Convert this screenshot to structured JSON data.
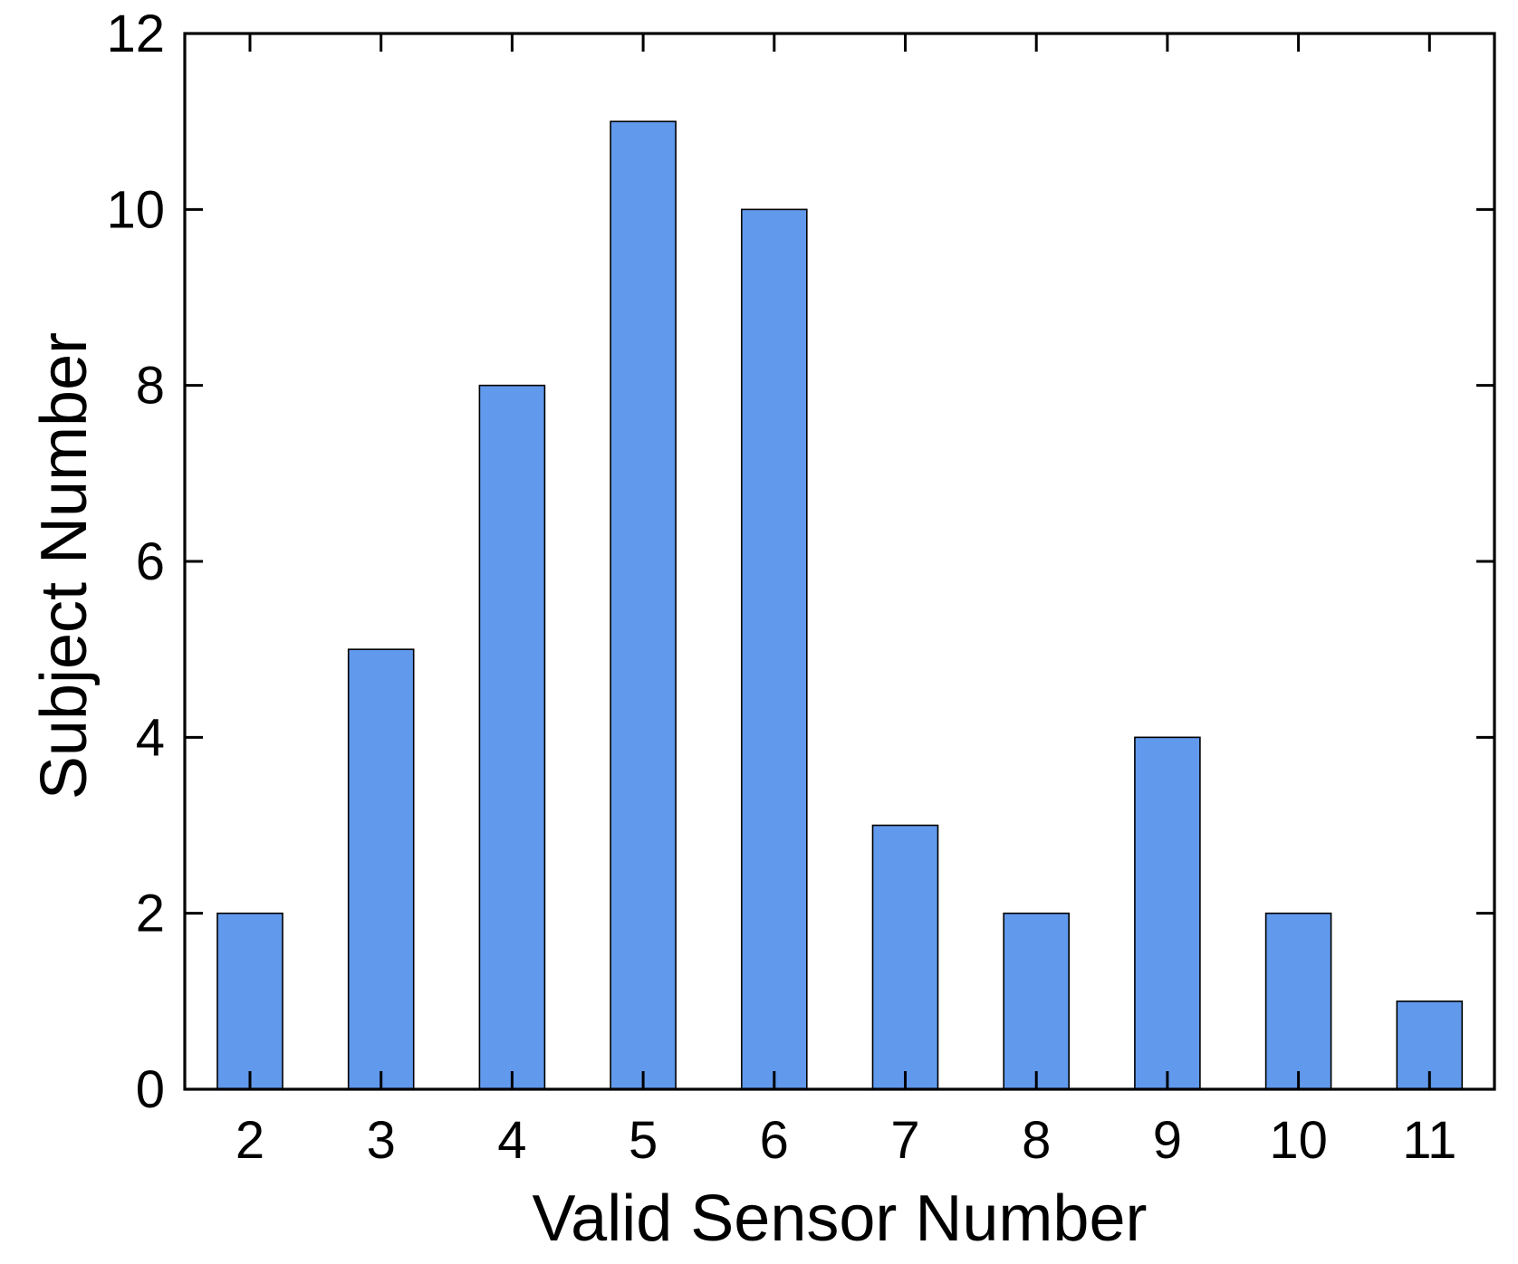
{
  "chart_data": {
    "type": "bar",
    "title": "",
    "xlabel": "Valid Sensor Number",
    "ylabel": "Subject Number",
    "categories": [
      "2",
      "3",
      "4",
      "5",
      "6",
      "7",
      "8",
      "9",
      "10",
      "11"
    ],
    "values": [
      2,
      5,
      8,
      11,
      10,
      3,
      2,
      4,
      2,
      1
    ],
    "ylim": [
      0,
      12
    ],
    "yticks": [
      0,
      2,
      4,
      6,
      8,
      10,
      12
    ],
    "grid": false,
    "legend": "none",
    "bar_color": "#6199EC",
    "bar_edge_color": "#000000",
    "axis_color": "#000000"
  }
}
